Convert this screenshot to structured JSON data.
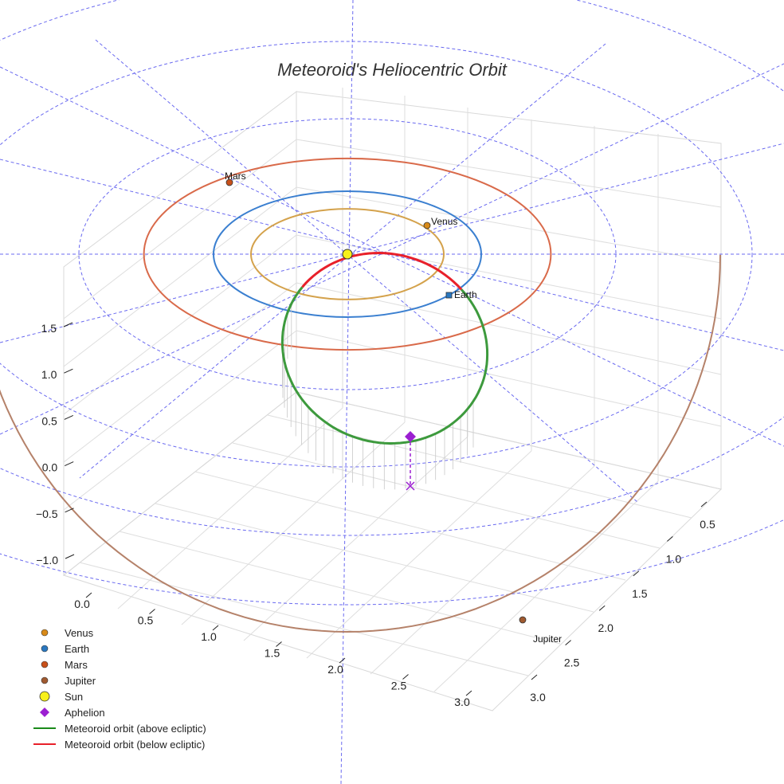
{
  "chart_data": {
    "type": "3d-orbit",
    "title": "Meteoroid's Heliocentric Orbit",
    "axes": {
      "z_ticks": [
        "−1.0",
        "−0.5",
        "0.0",
        "0.5",
        "1.0",
        "1.5"
      ],
      "x_ticks": [
        "0.0",
        "0.5",
        "1.0",
        "1.5",
        "2.0",
        "2.5",
        "3.0"
      ],
      "y_ticks": [
        "0.5",
        "1.0",
        "1.5",
        "2.0",
        "2.5",
        "3.0"
      ]
    },
    "orbits": [
      {
        "name": "Venus",
        "semi_major_au": 0.72,
        "color": "#d4a24c"
      },
      {
        "name": "Earth",
        "semi_major_au": 1.0,
        "color": "#3a7fd0"
      },
      {
        "name": "Mars",
        "semi_major_au": 1.52,
        "color": "#d96a4a"
      },
      {
        "name": "Jupiter",
        "semi_major_au": 5.2,
        "color": "#b5826a"
      }
    ],
    "planet_labels": {
      "venus": "Venus",
      "earth": "Earth",
      "mars": "Mars",
      "jupiter": "Jupiter"
    },
    "meteoroid": {
      "perihelion_au": 0.25,
      "aphelion_au": 2.8,
      "above_color": "#3d9a3d",
      "below_color": "#e8202a"
    },
    "aphelion_color": "#9b1fd1",
    "sun_color": "#f7f01a",
    "legend": [
      {
        "label": "Venus",
        "kind": "dot",
        "color": "#d88a18"
      },
      {
        "label": "Earth",
        "kind": "dot",
        "color": "#2a78c0"
      },
      {
        "label": "Mars",
        "kind": "dot",
        "color": "#c8501a"
      },
      {
        "label": "Jupiter",
        "kind": "dot",
        "color": "#a05a30"
      },
      {
        "label": "Sun",
        "kind": "sun",
        "color": "#f7f01a"
      },
      {
        "label": "Aphelion",
        "kind": "diamond",
        "color": "#9b1fd1"
      },
      {
        "label": "Meteoroid orbit (above ecliptic)",
        "kind": "line",
        "color": "#1a8a1a"
      },
      {
        "label": "Meteoroid orbit (below ecliptic)",
        "kind": "line",
        "color": "#e8202a"
      }
    ]
  }
}
